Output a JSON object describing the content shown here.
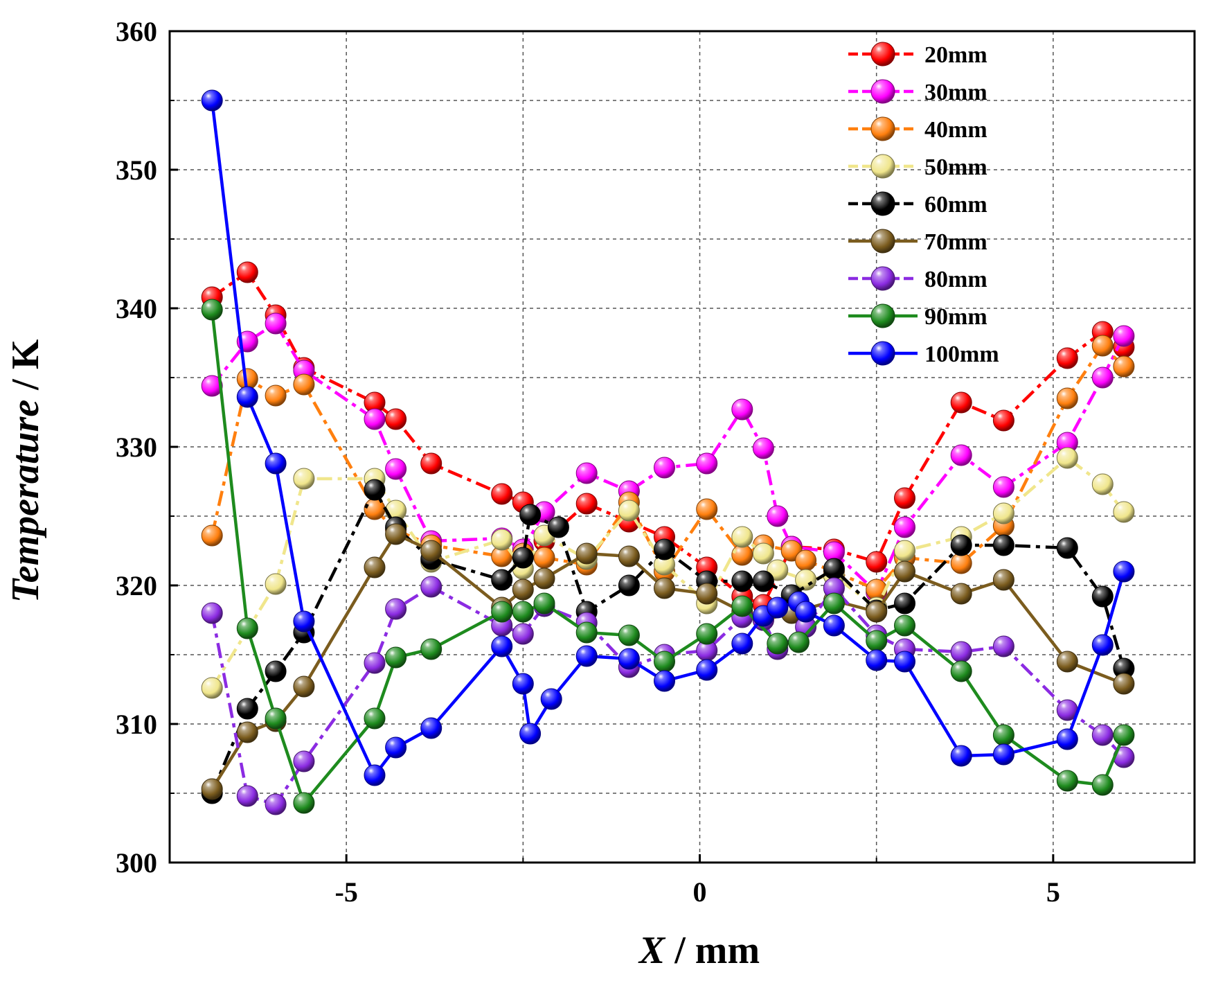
{
  "chart_data": {
    "type": "line",
    "title": "",
    "xlabel": {
      "italic": "X",
      "rest": " / mm"
    },
    "ylabel": {
      "italic": "Temperature",
      "rest": " / K"
    },
    "xlim": [
      -7.5,
      7
    ],
    "ylim": [
      300,
      360
    ],
    "xticks": [
      -5,
      0,
      5
    ],
    "xtick_labels": [
      "-5",
      "0",
      "5"
    ],
    "yticks": [
      300,
      310,
      320,
      330,
      340,
      350,
      360
    ],
    "ytick_labels": [
      "300",
      "310",
      "320",
      "330",
      "340",
      "350",
      "360"
    ],
    "grid": true,
    "legend_position": "top-right",
    "series": [
      {
        "name": "20mm",
        "color": "#ff0000",
        "dash": "dash-dot",
        "points": [
          [
            -6.9,
            340.8
          ],
          [
            -6.4,
            342.6
          ],
          [
            -6.0,
            339.5
          ],
          [
            -5.6,
            335.7
          ],
          [
            -4.6,
            333.2
          ],
          [
            -4.3,
            332.0
          ],
          [
            -3.8,
            328.8
          ],
          [
            -2.8,
            326.6
          ],
          [
            -2.5,
            326.0
          ],
          [
            -2.2,
            323.2
          ],
          [
            -1.6,
            325.9
          ],
          [
            -1.0,
            324.6
          ],
          [
            -0.5,
            323.5
          ],
          [
            0.1,
            321.3
          ],
          [
            0.6,
            319.2
          ],
          [
            0.9,
            318.6
          ],
          [
            1.3,
            322.8
          ],
          [
            1.9,
            322.6
          ],
          [
            2.5,
            321.7
          ],
          [
            2.9,
            326.3
          ],
          [
            3.7,
            333.2
          ],
          [
            4.3,
            331.9
          ],
          [
            5.2,
            336.4
          ],
          [
            5.7,
            338.3
          ],
          [
            6.0,
            337.2
          ]
        ]
      },
      {
        "name": "30mm",
        "color": "#ff00ff",
        "dash": "dash-dot",
        "points": [
          [
            -6.9,
            334.4
          ],
          [
            -6.4,
            337.6
          ],
          [
            -6.0,
            338.9
          ],
          [
            -5.6,
            335.5
          ],
          [
            -4.6,
            332.0
          ],
          [
            -4.3,
            328.4
          ],
          [
            -3.8,
            323.2
          ],
          [
            -2.8,
            323.4
          ],
          [
            -2.5,
            322.6
          ],
          [
            -2.2,
            325.3
          ],
          [
            -1.6,
            328.1
          ],
          [
            -1.0,
            326.8
          ],
          [
            -0.5,
            328.5
          ],
          [
            0.1,
            328.8
          ],
          [
            0.6,
            332.7
          ],
          [
            0.9,
            329.9
          ],
          [
            1.1,
            325.0
          ],
          [
            1.3,
            322.8
          ],
          [
            1.9,
            322.4
          ],
          [
            2.5,
            319.5
          ],
          [
            2.9,
            324.2
          ],
          [
            3.7,
            329.4
          ],
          [
            4.3,
            327.1
          ],
          [
            5.2,
            330.3
          ],
          [
            5.7,
            335.0
          ],
          [
            6.0,
            338.0
          ]
        ]
      },
      {
        "name": "40mm",
        "color": "#ff7f0e",
        "dash": "dash-dot",
        "points": [
          [
            -6.9,
            323.6
          ],
          [
            -6.4,
            334.9
          ],
          [
            -6.0,
            333.7
          ],
          [
            -5.6,
            334.5
          ],
          [
            -4.6,
            325.5
          ],
          [
            -4.3,
            324.0
          ],
          [
            -3.8,
            322.9
          ],
          [
            -2.8,
            322.1
          ],
          [
            -2.5,
            322.3
          ],
          [
            -2.2,
            322.0
          ],
          [
            -1.6,
            321.5
          ],
          [
            -1.0,
            326.0
          ],
          [
            -0.5,
            321.0
          ],
          [
            0.1,
            325.5
          ],
          [
            0.6,
            322.2
          ],
          [
            0.9,
            322.9
          ],
          [
            1.3,
            322.5
          ],
          [
            1.5,
            321.8
          ],
          [
            1.9,
            321.0
          ],
          [
            2.5,
            319.7
          ],
          [
            2.9,
            322.0
          ],
          [
            3.7,
            321.6
          ],
          [
            4.3,
            324.3
          ],
          [
            5.2,
            333.5
          ],
          [
            5.7,
            337.3
          ],
          [
            6.0,
            335.8
          ]
        ]
      },
      {
        "name": "50mm",
        "color": "#f0e68c",
        "dash": "dash-dot",
        "points": [
          [
            -6.9,
            312.6
          ],
          [
            -6.0,
            320.1
          ],
          [
            -5.6,
            327.7
          ],
          [
            -4.6,
            327.7
          ],
          [
            -4.3,
            325.4
          ],
          [
            -3.8,
            321.7
          ],
          [
            -2.8,
            323.3
          ],
          [
            -2.5,
            321.2
          ],
          [
            -2.2,
            323.6
          ],
          [
            -1.6,
            321.9
          ],
          [
            -1.0,
            325.4
          ],
          [
            -0.5,
            321.5
          ],
          [
            0.1,
            318.7
          ],
          [
            0.6,
            323.5
          ],
          [
            0.9,
            322.3
          ],
          [
            1.1,
            321.1
          ],
          [
            1.5,
            320.4
          ],
          [
            1.9,
            320.7
          ],
          [
            2.5,
            318.4
          ],
          [
            2.9,
            322.5
          ],
          [
            3.7,
            323.5
          ],
          [
            4.3,
            325.2
          ],
          [
            5.2,
            329.2
          ],
          [
            5.7,
            327.3
          ],
          [
            6.0,
            325.3
          ]
        ]
      },
      {
        "name": "60mm",
        "color": "#000000",
        "dash": "dash-dot",
        "points": [
          [
            -6.9,
            305.0
          ],
          [
            -6.4,
            311.1
          ],
          [
            -6.0,
            313.8
          ],
          [
            -5.6,
            316.6
          ],
          [
            -4.6,
            326.9
          ],
          [
            -4.3,
            324.2
          ],
          [
            -3.8,
            321.9
          ],
          [
            -2.8,
            320.4
          ],
          [
            -2.5,
            322.0
          ],
          [
            -2.4,
            325.1
          ],
          [
            -2.0,
            324.2
          ],
          [
            -1.6,
            318.1
          ],
          [
            -1.0,
            320.0
          ],
          [
            -0.5,
            322.6
          ],
          [
            0.1,
            320.3
          ],
          [
            0.6,
            320.3
          ],
          [
            0.9,
            320.3
          ],
          [
            1.3,
            319.3
          ],
          [
            1.9,
            321.2
          ],
          [
            2.5,
            318.2
          ],
          [
            2.9,
            318.7
          ],
          [
            3.7,
            322.9
          ],
          [
            4.3,
            322.9
          ],
          [
            5.2,
            322.7
          ],
          [
            5.7,
            319.2
          ],
          [
            6.0,
            314.0
          ]
        ]
      },
      {
        "name": "70mm",
        "color": "#7b5c1e",
        "dash": "solid",
        "points": [
          [
            -6.9,
            305.3
          ],
          [
            -6.4,
            309.4
          ],
          [
            -6.0,
            310.2
          ],
          [
            -5.6,
            312.7
          ],
          [
            -4.6,
            321.3
          ],
          [
            -4.3,
            323.7
          ],
          [
            -3.8,
            322.5
          ],
          [
            -2.8,
            318.4
          ],
          [
            -2.5,
            319.7
          ],
          [
            -2.2,
            320.5
          ],
          [
            -1.6,
            322.3
          ],
          [
            -1.0,
            322.1
          ],
          [
            -0.5,
            319.8
          ],
          [
            0.1,
            319.4
          ],
          [
            0.6,
            318.1
          ],
          [
            0.9,
            317.5
          ],
          [
            1.3,
            318.0
          ],
          [
            1.9,
            318.9
          ],
          [
            2.5,
            318.1
          ],
          [
            2.9,
            321.0
          ],
          [
            3.7,
            319.4
          ],
          [
            4.3,
            320.4
          ],
          [
            5.2,
            314.5
          ],
          [
            6.0,
            312.9
          ]
        ]
      },
      {
        "name": "80mm",
        "color": "#8b2be2",
        "dash": "dash-dot",
        "points": [
          [
            -6.9,
            318.0
          ],
          [
            -6.4,
            304.8
          ],
          [
            -6.0,
            304.2
          ],
          [
            -5.6,
            307.3
          ],
          [
            -4.6,
            314.4
          ],
          [
            -4.3,
            318.3
          ],
          [
            -3.8,
            319.9
          ],
          [
            -2.8,
            317.1
          ],
          [
            -2.5,
            316.5
          ],
          [
            -2.2,
            318.5
          ],
          [
            -1.6,
            317.3
          ],
          [
            -1.0,
            314.1
          ],
          [
            -0.5,
            315.0
          ],
          [
            0.1,
            315.3
          ],
          [
            0.6,
            317.7
          ],
          [
            0.9,
            317.5
          ],
          [
            1.1,
            315.4
          ],
          [
            1.5,
            317.0
          ],
          [
            1.9,
            319.8
          ],
          [
            2.5,
            316.4
          ],
          [
            2.9,
            315.4
          ],
          [
            3.7,
            315.2
          ],
          [
            4.3,
            315.6
          ],
          [
            5.2,
            311.0
          ],
          [
            5.7,
            309.2
          ],
          [
            6.0,
            307.6
          ]
        ]
      },
      {
        "name": "90mm",
        "color": "#1e8b1e",
        "dash": "solid",
        "points": [
          [
            -6.9,
            339.9
          ],
          [
            -6.4,
            316.9
          ],
          [
            -6.0,
            310.4
          ],
          [
            -5.6,
            304.3
          ],
          [
            -4.6,
            310.4
          ],
          [
            -4.3,
            314.8
          ],
          [
            -3.8,
            315.4
          ],
          [
            -2.8,
            318.1
          ],
          [
            -2.5,
            318.1
          ],
          [
            -2.2,
            318.7
          ],
          [
            -1.6,
            316.6
          ],
          [
            -1.0,
            316.4
          ],
          [
            -0.5,
            314.5
          ],
          [
            0.1,
            316.5
          ],
          [
            0.6,
            318.5
          ],
          [
            1.1,
            315.8
          ],
          [
            1.4,
            315.9
          ],
          [
            1.9,
            318.7
          ],
          [
            2.5,
            316.0
          ],
          [
            2.9,
            317.1
          ],
          [
            3.7,
            313.8
          ],
          [
            4.3,
            309.2
          ],
          [
            5.2,
            305.9
          ],
          [
            5.7,
            305.6
          ],
          [
            6.0,
            309.2
          ]
        ]
      },
      {
        "name": "100mm",
        "color": "#0000ff",
        "dash": "solid",
        "points": [
          [
            -6.9,
            355.0
          ],
          [
            -6.4,
            333.6
          ],
          [
            -6.0,
            328.8
          ],
          [
            -5.6,
            317.4
          ],
          [
            -4.6,
            306.3
          ],
          [
            -4.3,
            308.3
          ],
          [
            -3.8,
            309.7
          ],
          [
            -2.8,
            315.6
          ],
          [
            -2.5,
            312.9
          ],
          [
            -2.4,
            309.3
          ],
          [
            -2.1,
            311.8
          ],
          [
            -1.6,
            314.9
          ],
          [
            -1.0,
            314.7
          ],
          [
            -0.5,
            313.1
          ],
          [
            0.1,
            313.9
          ],
          [
            0.6,
            315.8
          ],
          [
            0.9,
            317.8
          ],
          [
            1.1,
            318.4
          ],
          [
            1.4,
            318.8
          ],
          [
            1.5,
            318.1
          ],
          [
            1.9,
            317.1
          ],
          [
            2.5,
            314.6
          ],
          [
            2.9,
            314.5
          ],
          [
            3.7,
            307.7
          ],
          [
            4.3,
            307.8
          ],
          [
            5.2,
            308.9
          ],
          [
            5.7,
            315.7
          ],
          [
            6.0,
            321.0
          ]
        ]
      }
    ]
  }
}
